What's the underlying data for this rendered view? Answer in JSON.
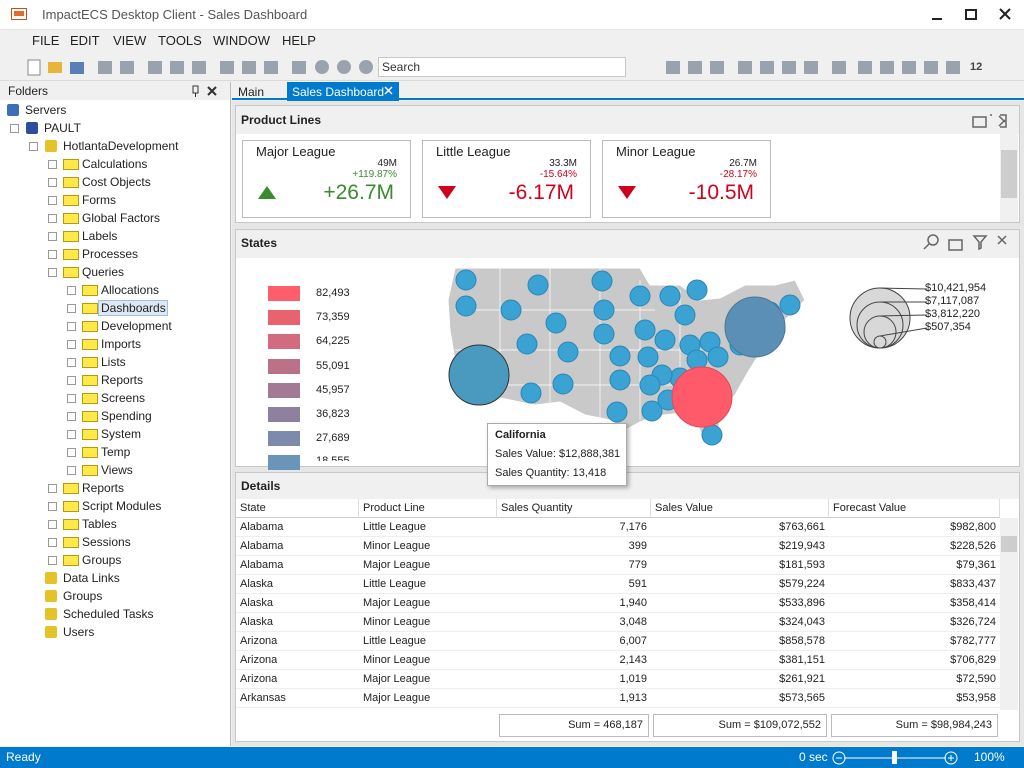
{
  "window": {
    "title": "ImpactECS Desktop Client - Sales Dashboard"
  },
  "menu": [
    "FILE",
    "EDIT",
    "VIEW",
    "TOOLS",
    "WINDOW",
    "HELP"
  ],
  "toolbar": {
    "search": "Search",
    "font_size": "12"
  },
  "folders": {
    "title": "Folders",
    "tree": [
      {
        "label": "Servers",
        "children": [
          {
            "label": "PAULT",
            "children": [
              {
                "label": "HotlantaDevelopment",
                "children": [
                  {
                    "label": "Calculations"
                  },
                  {
                    "label": "Cost Objects"
                  },
                  {
                    "label": "Forms"
                  },
                  {
                    "label": "Global Factors"
                  },
                  {
                    "label": "Labels"
                  },
                  {
                    "label": "Processes"
                  },
                  {
                    "label": "Queries",
                    "children": [
                      {
                        "label": "Allocations"
                      },
                      {
                        "label": "Dashboards",
                        "selected": true
                      },
                      {
                        "label": "Development"
                      },
                      {
                        "label": "Imports"
                      },
                      {
                        "label": "Lists"
                      },
                      {
                        "label": "Reports"
                      },
                      {
                        "label": "Screens"
                      },
                      {
                        "label": "Spending"
                      },
                      {
                        "label": "System"
                      },
                      {
                        "label": "Temp"
                      },
                      {
                        "label": "Views"
                      }
                    ]
                  },
                  {
                    "label": "Reports"
                  },
                  {
                    "label": "Script Modules"
                  },
                  {
                    "label": "Tables"
                  },
                  {
                    "label": "Sessions"
                  },
                  {
                    "label": "Groups"
                  }
                ]
              },
              {
                "label": "Data Links"
              },
              {
                "label": "Groups"
              },
              {
                "label": "Scheduled Tasks"
              },
              {
                "label": "Users"
              }
            ]
          }
        ]
      }
    ]
  },
  "tabs": [
    "Main",
    "Sales Dashboard"
  ],
  "product_lines": {
    "title": "Product Lines",
    "cards": [
      {
        "name": "Major League",
        "target": "49M",
        "change": "+119.87%",
        "value": "+26.7M",
        "trend": "up"
      },
      {
        "name": "Little League",
        "target": "33.3M",
        "change": "-15.64%",
        "value": "-6.17M",
        "trend": "down"
      },
      {
        "name": "Minor League",
        "target": "26.7M",
        "change": "-28.17%",
        "value": "-10.5M",
        "trend": "down"
      }
    ]
  },
  "states": {
    "title": "States",
    "legend": [
      "82,493",
      "73,359",
      "64,225",
      "55,091",
      "45,957",
      "36,823",
      "27,689",
      "18,555"
    ],
    "legend_colors": [
      "#fe5d6b",
      "#e9636f",
      "#d26b7e",
      "#bb7289",
      "#a37a95",
      "#8e819f",
      "#7c8aab",
      "#6b95b8"
    ],
    "size_legend": [
      "$10,421,954",
      "$7,117,087",
      "$3,812,220",
      "$507,354"
    ],
    "tooltip": {
      "title": "California",
      "lines": [
        "Sales Value: $12,888,381",
        "Sales Quantity: 13,418"
      ]
    }
  },
  "details": {
    "title": "Details",
    "columns": [
      "State",
      "Product Line",
      "Sales Quantity",
      "Sales Value",
      "Forecast Value"
    ],
    "rows": [
      [
        "Alabama",
        "Little League",
        "7,176",
        "$763,661",
        "$982,800"
      ],
      [
        "Alabama",
        "Minor League",
        "399",
        "$219,943",
        "$228,526"
      ],
      [
        "Alabama",
        "Major League",
        "779",
        "$181,593",
        "$79,361"
      ],
      [
        "Alaska",
        "Little League",
        "591",
        "$579,224",
        "$833,437"
      ],
      [
        "Alaska",
        "Major League",
        "1,940",
        "$533,896",
        "$358,414"
      ],
      [
        "Alaska",
        "Minor League",
        "3,048",
        "$324,043",
        "$326,724"
      ],
      [
        "Arizona",
        "Little League",
        "6,007",
        "$858,578",
        "$782,777"
      ],
      [
        "Arizona",
        "Minor League",
        "2,143",
        "$381,151",
        "$706,829"
      ],
      [
        "Arizona",
        "Major League",
        "1,019",
        "$261,921",
        "$72,590"
      ],
      [
        "Arkansas",
        "Major League",
        "1,913",
        "$573,565",
        "$53,958"
      ]
    ],
    "totals": [
      "Sum = 468,187",
      "Sum = $109,072,552",
      "Sum = $98,984,243"
    ]
  },
  "status": {
    "text": "Ready",
    "time": "0 sec",
    "zoom": "100%"
  }
}
